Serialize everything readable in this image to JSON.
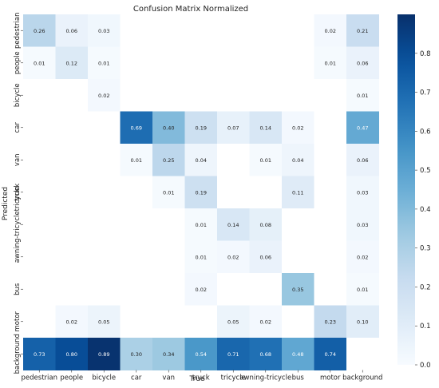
{
  "chart_data": {
    "type": "heatmap",
    "title": "Confusion Matrix Normalized",
    "xlabel": "True",
    "ylabel": "Predicted",
    "x_categories": [
      "pedestrian",
      "people",
      "bicycle",
      "car",
      "van",
      "truck",
      "tricycle",
      "awning-tricycle",
      "bus",
      "motor",
      "background"
    ],
    "y_categories": [
      "pedestrian",
      "people",
      "bicycle",
      "car",
      "van",
      "truck",
      "awning-tricycletricycle",
      "",
      "bus",
      "motor",
      "background"
    ],
    "values": [
      [
        0.26,
        0.06,
        0.03,
        null,
        null,
        null,
        null,
        null,
        null,
        0.02,
        0.21
      ],
      [
        0.01,
        0.12,
        0.01,
        null,
        null,
        null,
        null,
        null,
        null,
        0.01,
        0.06
      ],
      [
        null,
        null,
        0.02,
        null,
        null,
        null,
        null,
        null,
        null,
        null,
        0.01
      ],
      [
        null,
        null,
        null,
        0.69,
        0.4,
        0.19,
        0.07,
        0.14,
        0.02,
        null,
        0.47
      ],
      [
        null,
        null,
        null,
        0.01,
        0.25,
        0.04,
        null,
        0.01,
        0.04,
        null,
        0.06
      ],
      [
        null,
        null,
        null,
        null,
        0.01,
        0.19,
        null,
        null,
        0.11,
        null,
        0.03
      ],
      [
        null,
        null,
        null,
        null,
        null,
        0.01,
        0.14,
        0.08,
        null,
        null,
        0.03
      ],
      [
        null,
        null,
        null,
        null,
        null,
        0.01,
        0.02,
        0.06,
        null,
        null,
        0.02
      ],
      [
        null,
        null,
        null,
        null,
        null,
        0.02,
        null,
        null,
        0.35,
        null,
        0.01
      ],
      [
        null,
        0.02,
        0.05,
        null,
        null,
        null,
        0.05,
        0.02,
        null,
        0.23,
        0.1
      ],
      [
        0.73,
        0.8,
        0.89,
        0.3,
        0.34,
        0.54,
        0.71,
        0.68,
        0.48,
        0.74,
        null
      ]
    ],
    "colorbar": {
      "range": [
        0,
        0.9
      ],
      "ticks": [
        "0.0",
        "0.1",
        "0.2",
        "0.3",
        "0.4",
        "0.5",
        "0.6",
        "0.7",
        "0.8"
      ],
      "colormap": "Blues"
    },
    "colors": {
      "low": "#f7fbff",
      "high": "#08306b"
    }
  }
}
